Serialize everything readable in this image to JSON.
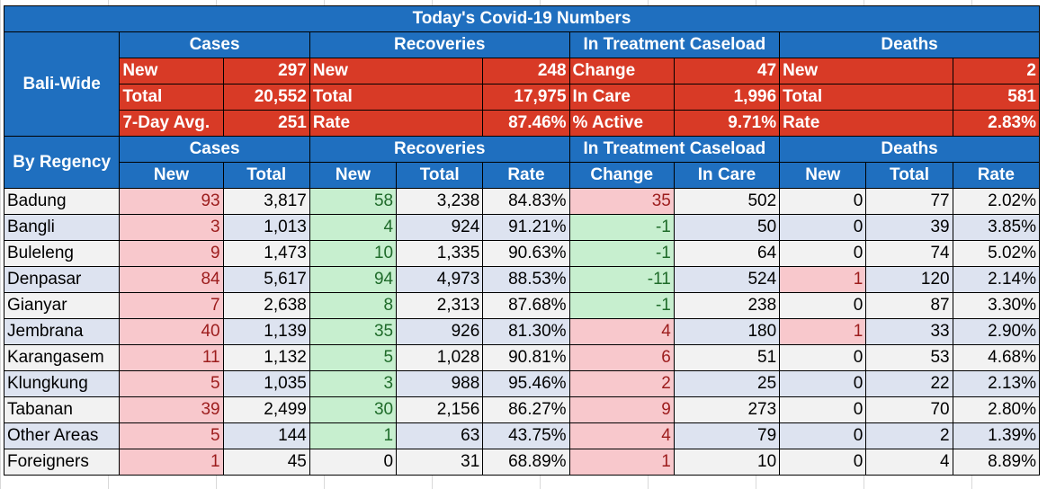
{
  "title": "Today's Covid-19 Numbers",
  "bali_wide": {
    "label": "Bali-Wide",
    "groups": [
      "Cases",
      "Recoveries",
      "In Treatment Caseload",
      "Deaths"
    ],
    "rows": [
      [
        [
          "New",
          "297"
        ],
        [
          "New",
          "248"
        ],
        [
          "Change",
          "47"
        ],
        [
          "New",
          "2"
        ]
      ],
      [
        [
          "Total",
          "20,552"
        ],
        [
          "Total",
          "17,975"
        ],
        [
          "In Care",
          "1,996"
        ],
        [
          "Total",
          "581"
        ]
      ],
      [
        [
          "7-Day Avg.",
          "251"
        ],
        [
          "Rate",
          "87.46%"
        ],
        [
          "% Active",
          "9.71%"
        ],
        [
          "Rate",
          "2.83%"
        ]
      ]
    ]
  },
  "by_regency": {
    "label": "By Regency",
    "groups": [
      "Cases",
      "Recoveries",
      "In Treatment Caseload",
      "Deaths"
    ],
    "subheaders": [
      "New",
      "Total",
      "New",
      "Total",
      "Rate",
      "Change",
      "In Care",
      "New",
      "Total",
      "Rate"
    ],
    "rows": [
      {
        "name": "Badung",
        "cells": [
          "93",
          "3,817",
          "58",
          "3,238",
          "84.83%",
          "35",
          "502",
          "0",
          "77",
          "2.02%"
        ],
        "hl": [
          "pink",
          "",
          "green",
          "",
          "",
          "pink",
          "",
          "",
          "",
          ""
        ]
      },
      {
        "name": "Bangli",
        "cells": [
          "3",
          "1,013",
          "4",
          "924",
          "91.21%",
          "-1",
          "50",
          "0",
          "39",
          "3.85%"
        ],
        "hl": [
          "pink",
          "",
          "green",
          "",
          "",
          "green",
          "",
          "",
          "",
          ""
        ]
      },
      {
        "name": "Buleleng",
        "cells": [
          "9",
          "1,473",
          "10",
          "1,335",
          "90.63%",
          "-1",
          "64",
          "0",
          "74",
          "5.02%"
        ],
        "hl": [
          "pink",
          "",
          "green",
          "",
          "",
          "green",
          "",
          "",
          "",
          ""
        ]
      },
      {
        "name": "Denpasar",
        "cells": [
          "84",
          "5,617",
          "94",
          "4,973",
          "88.53%",
          "-11",
          "524",
          "1",
          "120",
          "2.14%"
        ],
        "hl": [
          "pink",
          "",
          "green",
          "",
          "",
          "green",
          "",
          "pink",
          "",
          ""
        ]
      },
      {
        "name": "Gianyar",
        "cells": [
          "7",
          "2,638",
          "8",
          "2,313",
          "87.68%",
          "-1",
          "238",
          "0",
          "87",
          "3.30%"
        ],
        "hl": [
          "pink",
          "",
          "green",
          "",
          "",
          "green",
          "",
          "",
          "",
          ""
        ]
      },
      {
        "name": "Jembrana",
        "cells": [
          "40",
          "1,139",
          "35",
          "926",
          "81.30%",
          "4",
          "180",
          "1",
          "33",
          "2.90%"
        ],
        "hl": [
          "pink",
          "",
          "green",
          "",
          "",
          "pink",
          "",
          "pink",
          "",
          ""
        ]
      },
      {
        "name": "Karangasem",
        "cells": [
          "11",
          "1,132",
          "5",
          "1,028",
          "90.81%",
          "6",
          "51",
          "0",
          "53",
          "4.68%"
        ],
        "hl": [
          "pink",
          "",
          "green",
          "",
          "",
          "pink",
          "",
          "",
          "",
          ""
        ]
      },
      {
        "name": "Klungkung",
        "cells": [
          "5",
          "1,035",
          "3",
          "988",
          "95.46%",
          "2",
          "25",
          "0",
          "22",
          "2.13%"
        ],
        "hl": [
          "pink",
          "",
          "green",
          "",
          "",
          "pink",
          "",
          "",
          "",
          ""
        ]
      },
      {
        "name": "Tabanan",
        "cells": [
          "39",
          "2,499",
          "30",
          "2,156",
          "86.27%",
          "9",
          "273",
          "0",
          "70",
          "2.80%"
        ],
        "hl": [
          "pink",
          "",
          "green",
          "",
          "",
          "pink",
          "",
          "",
          "",
          ""
        ]
      },
      {
        "name": "Other Areas",
        "cells": [
          "5",
          "144",
          "1",
          "63",
          "43.75%",
          "4",
          "79",
          "0",
          "2",
          "1.39%"
        ],
        "hl": [
          "pink",
          "",
          "green",
          "",
          "",
          "pink",
          "",
          "",
          "",
          ""
        ]
      },
      {
        "name": "Foreigners",
        "cells": [
          "1",
          "45",
          "0",
          "31",
          "68.89%",
          "1",
          "10",
          "0",
          "4",
          "8.89%"
        ],
        "hl": [
          "pink",
          "",
          "",
          "",
          "",
          "pink",
          "",
          "",
          "",
          ""
        ]
      }
    ]
  }
}
